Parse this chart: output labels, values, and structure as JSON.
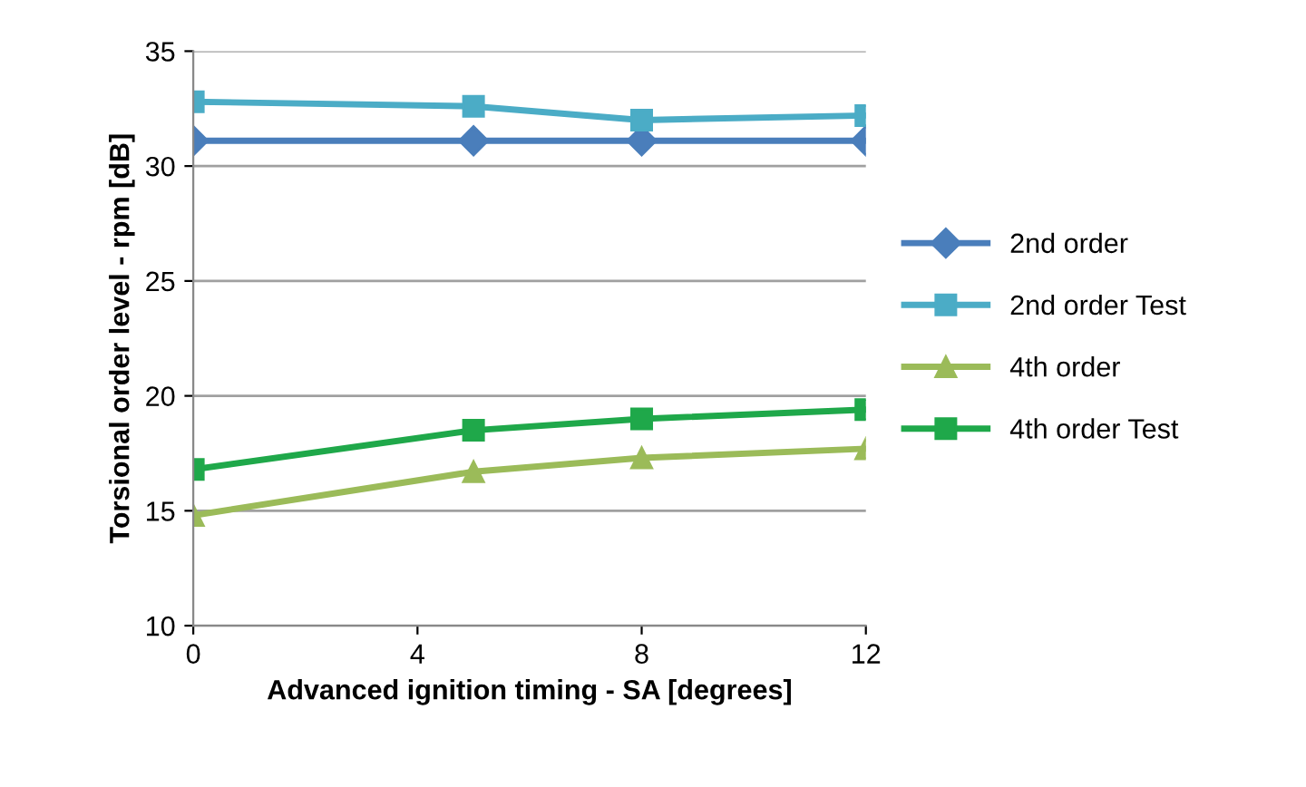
{
  "chart_data": {
    "type": "line",
    "xlabel": "Advanced ignition timing - SA [degrees]",
    "ylabel": "Torsional order level - rpm [dB]",
    "x": [
      0,
      5,
      8,
      12
    ],
    "xlim": [
      0,
      12
    ],
    "xticks": [
      0,
      4,
      8,
      12
    ],
    "ylim": [
      10,
      35
    ],
    "yticks": [
      10,
      15,
      20,
      25,
      30,
      35
    ],
    "grid": "y",
    "legend": "right",
    "series": [
      {
        "name": "2nd order",
        "color": "#4a7ebb",
        "marker": "diamond",
        "values": [
          31.1,
          31.1,
          31.1,
          31.1
        ]
      },
      {
        "name": "2nd order Test",
        "color": "#4bacc6",
        "marker": "square",
        "values": [
          32.8,
          32.6,
          32.0,
          32.2
        ]
      },
      {
        "name": "4th order",
        "color": "#9bbb59",
        "marker": "triangle",
        "values": [
          14.8,
          16.7,
          17.3,
          17.7
        ]
      },
      {
        "name": "4th order Test",
        "color": "#1fa84a",
        "marker": "square",
        "values": [
          16.8,
          18.5,
          19.0,
          19.4
        ]
      }
    ]
  }
}
